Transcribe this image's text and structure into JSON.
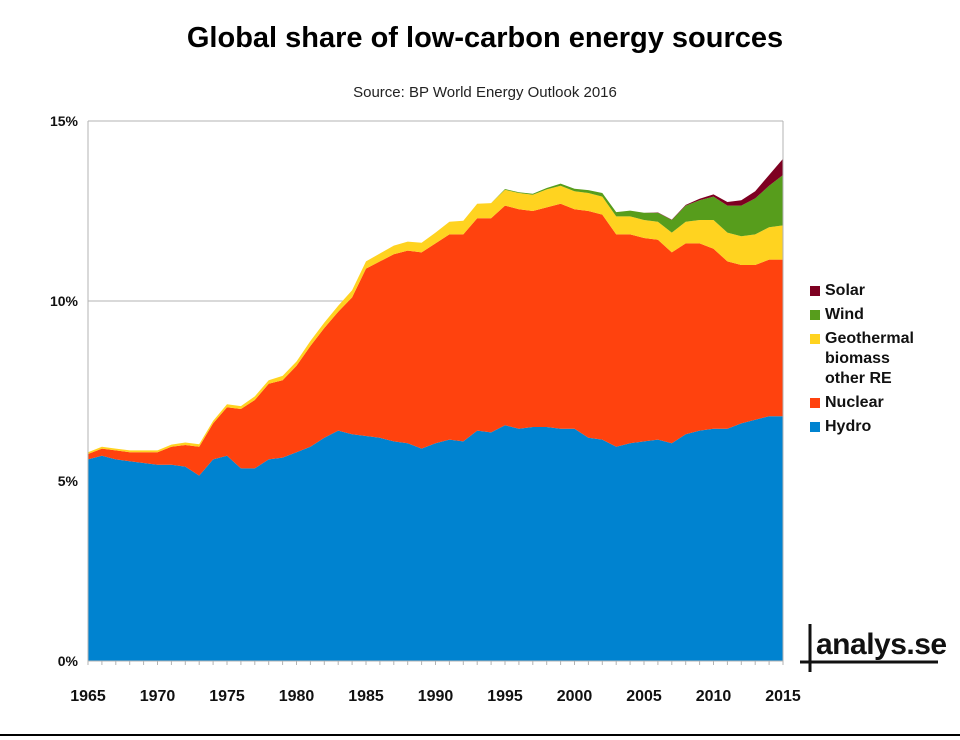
{
  "chart_data": {
    "type": "area",
    "stacked": true,
    "title": "Global share of low-carbon energy sources",
    "subtitle": "Source: BP World Energy Outlook 2016",
    "xlabel": "",
    "ylabel": "",
    "xlim": [
      1965,
      2015
    ],
    "ylim": [
      0,
      15
    ],
    "y_ticks": [
      "0%",
      "5%",
      "10%",
      "15%"
    ],
    "y_tick_values": [
      0,
      5,
      10,
      15
    ],
    "x_ticks": [
      "1965",
      "1970",
      "1975",
      "1980",
      "1985",
      "1990",
      "1995",
      "2000",
      "2005",
      "2010",
      "2015"
    ],
    "x_tick_values": [
      1965,
      1970,
      1975,
      1980,
      1985,
      1990,
      1995,
      2000,
      2005,
      2010,
      2015
    ],
    "grid": "horizontal",
    "legend_position": "right",
    "x": [
      1965,
      1966,
      1967,
      1968,
      1969,
      1970,
      1971,
      1972,
      1973,
      1974,
      1975,
      1976,
      1977,
      1978,
      1979,
      1980,
      1981,
      1982,
      1983,
      1984,
      1985,
      1986,
      1987,
      1988,
      1989,
      1990,
      1991,
      1992,
      1993,
      1994,
      1995,
      1996,
      1997,
      1998,
      1999,
      2000,
      2001,
      2002,
      2003,
      2004,
      2005,
      2006,
      2007,
      2008,
      2009,
      2010,
      2011,
      2012,
      2013,
      2014,
      2015
    ],
    "series": [
      {
        "name": "Hydro",
        "color": "#0083d0",
        "values": [
          5.6,
          5.7,
          5.6,
          5.55,
          5.5,
          5.45,
          5.45,
          5.4,
          5.15,
          5.6,
          5.7,
          5.35,
          5.35,
          5.6,
          5.65,
          5.8,
          5.95,
          6.2,
          6.4,
          6.3,
          6.25,
          6.2,
          6.1,
          6.05,
          5.9,
          6.05,
          6.15,
          6.1,
          6.4,
          6.35,
          6.55,
          6.45,
          6.5,
          6.5,
          6.45,
          6.45,
          6.2,
          6.15,
          5.95,
          6.05,
          6.1,
          6.15,
          6.05,
          6.3,
          6.4,
          6.45,
          6.45,
          6.6,
          6.7,
          6.8,
          6.8
        ]
      },
      {
        "name": "Nuclear",
        "color": "#ff420e",
        "values": [
          0.15,
          0.2,
          0.25,
          0.25,
          0.3,
          0.35,
          0.5,
          0.6,
          0.8,
          1.0,
          1.35,
          1.65,
          1.9,
          2.1,
          2.15,
          2.4,
          2.8,
          3.05,
          3.3,
          3.8,
          4.65,
          4.9,
          5.2,
          5.35,
          5.45,
          5.55,
          5.7,
          5.75,
          5.9,
          5.95,
          6.1,
          6.1,
          6.0,
          6.1,
          6.25,
          6.1,
          6.3,
          6.25,
          5.9,
          5.8,
          5.65,
          5.55,
          5.3,
          5.3,
          5.2,
          5.0,
          4.65,
          4.4,
          4.3,
          4.35,
          4.35
        ]
      },
      {
        "name": "Geothermal\nbiomass\nother RE",
        "color": "#ffd320",
        "values": [
          0.05,
          0.05,
          0.05,
          0.05,
          0.05,
          0.05,
          0.06,
          0.07,
          0.07,
          0.07,
          0.08,
          0.08,
          0.1,
          0.1,
          0.12,
          0.12,
          0.14,
          0.15,
          0.17,
          0.2,
          0.2,
          0.22,
          0.24,
          0.25,
          0.27,
          0.3,
          0.35,
          0.38,
          0.4,
          0.42,
          0.44,
          0.45,
          0.45,
          0.5,
          0.5,
          0.5,
          0.5,
          0.5,
          0.5,
          0.5,
          0.5,
          0.5,
          0.55,
          0.6,
          0.65,
          0.8,
          0.8,
          0.8,
          0.85,
          0.9,
          0.95
        ]
      },
      {
        "name": "Wind",
        "color": "#579d1c",
        "values": [
          0,
          0,
          0,
          0,
          0,
          0,
          0,
          0,
          0,
          0,
          0,
          0,
          0,
          0,
          0,
          0,
          0,
          0,
          0,
          0,
          0,
          0,
          0,
          0,
          0,
          0,
          0,
          0,
          0,
          0,
          0.02,
          0.02,
          0.03,
          0.04,
          0.06,
          0.07,
          0.08,
          0.1,
          0.12,
          0.16,
          0.2,
          0.25,
          0.35,
          0.45,
          0.55,
          0.65,
          0.75,
          0.85,
          1.0,
          1.15,
          1.4
        ]
      },
      {
        "name": "Solar",
        "color": "#7e0021",
        "values": [
          0,
          0,
          0,
          0,
          0,
          0,
          0,
          0,
          0,
          0,
          0,
          0,
          0,
          0,
          0,
          0,
          0,
          0,
          0,
          0,
          0,
          0,
          0,
          0,
          0,
          0,
          0,
          0,
          0,
          0,
          0,
          0,
          0,
          0,
          0,
          0,
          0,
          0,
          0,
          0,
          0,
          0.01,
          0.01,
          0.02,
          0.04,
          0.06,
          0.1,
          0.15,
          0.2,
          0.3,
          0.45
        ]
      }
    ],
    "legend_order": [
      "Solar",
      "Wind",
      "Geothermal\nbiomass\nother RE",
      "Nuclear",
      "Hydro"
    ]
  },
  "logo": {
    "text": "analys.se"
  }
}
